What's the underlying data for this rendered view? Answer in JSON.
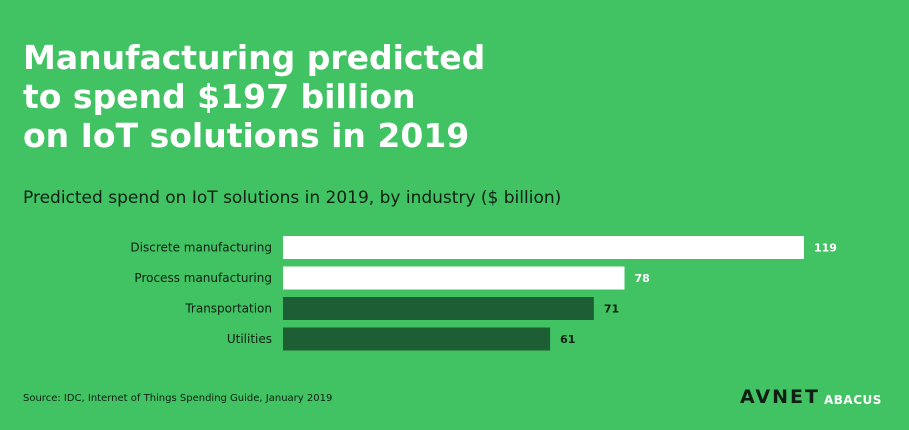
{
  "headline": {
    "line1": "Manufacturing predicted",
    "line2": "to spend $197 billion",
    "line3": "on IoT solutions in 2019"
  },
  "subtitle": "Predicted spend on IoT solutions in 2019, by industry ($ billion)",
  "chart_data": {
    "type": "bar",
    "orientation": "horizontal",
    "title": "",
    "categories": [
      "Discrete manufacturing",
      "Process manufacturing",
      "Transportation",
      "Utilities"
    ],
    "values": [
      119,
      78,
      71,
      61
    ],
    "bar_colors": [
      "#ffffff",
      "#ffffff",
      "#1e5e35",
      "#1e5e35"
    ],
    "label_colors": [
      "#ffffff",
      "#ffffff",
      "#0f1f14",
      "#0f1f14"
    ],
    "xlim": [
      0,
      119
    ],
    "grid": false,
    "legend": "none"
  },
  "source": "Source: IDC, Internet of Things Spending Guide, January 2019",
  "logo": {
    "main": "AVNET",
    "sub": "ABACUS"
  },
  "colors": {
    "background": "#41c363",
    "highlight_bar": "#ffffff",
    "other_bar": "#1e5e35",
    "text_dark": "#0f1f14"
  }
}
